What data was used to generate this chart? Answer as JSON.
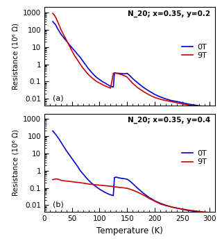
{
  "title_a": "N_20; x=0.35, y=0.2",
  "title_b": "N_20; x=0.35, y=0.4",
  "xlabel": "Temperature (K)",
  "ylabel": "Resistance (10⁶ Ω)",
  "panel_a_0T": {
    "T": [
      15,
      20,
      25,
      30,
      35,
      40,
      45,
      50,
      55,
      60,
      65,
      70,
      75,
      80,
      85,
      90,
      95,
      100,
      105,
      110,
      115,
      120,
      125,
      127,
      130,
      135,
      140,
      145,
      150,
      155,
      160,
      170,
      180,
      190,
      200,
      210,
      220,
      230,
      240,
      250,
      260,
      270,
      280,
      290,
      300
    ],
    "R": [
      300,
      200,
      100,
      55,
      35,
      22,
      14,
      9,
      6,
      3.8,
      2.5,
      1.5,
      0.9,
      0.55,
      0.36,
      0.24,
      0.17,
      0.13,
      0.1,
      0.082,
      0.065,
      0.054,
      0.048,
      0.32,
      0.31,
      0.3,
      0.29,
      0.28,
      0.3,
      0.22,
      0.15,
      0.08,
      0.045,
      0.028,
      0.018,
      0.013,
      0.01,
      0.008,
      0.007,
      0.006,
      0.005,
      0.0045,
      0.004,
      0.0035,
      0.003
    ]
  },
  "panel_a_9T": {
    "T": [
      15,
      18,
      20,
      22,
      25,
      28,
      30,
      35,
      40,
      45,
      50,
      55,
      60,
      65,
      70,
      75,
      80,
      85,
      90,
      95,
      100,
      105,
      110,
      115,
      120,
      125,
      127,
      130,
      133,
      135,
      140,
      145,
      150,
      155,
      160,
      170,
      180,
      190,
      200,
      210,
      220,
      230,
      240,
      250,
      260,
      270,
      280,
      290,
      300
    ],
    "R": [
      900,
      700,
      550,
      400,
      250,
      150,
      100,
      50,
      25,
      12,
      6,
      3,
      1.8,
      1.0,
      0.6,
      0.38,
      0.25,
      0.18,
      0.13,
      0.1,
      0.082,
      0.068,
      0.056,
      0.048,
      0.042,
      0.3,
      0.31,
      0.3,
      0.29,
      0.28,
      0.25,
      0.22,
      0.18,
      0.12,
      0.08,
      0.042,
      0.026,
      0.017,
      0.012,
      0.0095,
      0.008,
      0.007,
      0.006,
      0.005,
      0.0045,
      0.004,
      0.0038,
      0.0035,
      0.003
    ]
  },
  "panel_b_0T": {
    "T": [
      15,
      20,
      25,
      30,
      35,
      40,
      45,
      50,
      55,
      60,
      65,
      70,
      75,
      80,
      85,
      90,
      95,
      100,
      105,
      110,
      115,
      120,
      125,
      127,
      130,
      133,
      135,
      140,
      145,
      150,
      155,
      160,
      170,
      180,
      190,
      200,
      210,
      220,
      230,
      240,
      250,
      260,
      270,
      280,
      290,
      300
    ],
    "R": [
      200,
      130,
      80,
      45,
      25,
      14,
      8.5,
      5.0,
      3.0,
      1.8,
      1.0,
      0.65,
      0.42,
      0.28,
      0.195,
      0.145,
      0.11,
      0.085,
      0.068,
      0.055,
      0.046,
      0.04,
      0.036,
      0.4,
      0.42,
      0.4,
      0.38,
      0.36,
      0.34,
      0.32,
      0.25,
      0.18,
      0.09,
      0.048,
      0.028,
      0.018,
      0.013,
      0.01,
      0.008,
      0.0068,
      0.0058,
      0.005,
      0.0045,
      0.004,
      0.0038,
      0.0035
    ]
  },
  "panel_b_9T": {
    "T": [
      15,
      18,
      20,
      22,
      25,
      30,
      35,
      40,
      45,
      50,
      55,
      60,
      65,
      70,
      75,
      80,
      85,
      90,
      95,
      100,
      105,
      110,
      115,
      120,
      125,
      127,
      130,
      133,
      135,
      140,
      145,
      150,
      155,
      160,
      170,
      180,
      190,
      200,
      210,
      220,
      230,
      240,
      250,
      260,
      270,
      280,
      290,
      300
    ],
    "R": [
      0.3,
      0.32,
      0.33,
      0.33,
      0.32,
      0.28,
      0.26,
      0.25,
      0.24,
      0.23,
      0.22,
      0.21,
      0.2,
      0.19,
      0.18,
      0.17,
      0.16,
      0.155,
      0.15,
      0.145,
      0.14,
      0.135,
      0.13,
      0.125,
      0.12,
      0.115,
      0.115,
      0.11,
      0.108,
      0.105,
      0.1,
      0.095,
      0.085,
      0.075,
      0.055,
      0.038,
      0.025,
      0.017,
      0.012,
      0.0095,
      0.008,
      0.0068,
      0.006,
      0.0053,
      0.0048,
      0.0044,
      0.004,
      0.0038
    ]
  },
  "color_0T": "#0000cc",
  "color_9T": "#cc0000",
  "ylim_lo": 0.004,
  "ylim_hi": 2000,
  "xlim_lo": 0,
  "xlim_hi": 310
}
